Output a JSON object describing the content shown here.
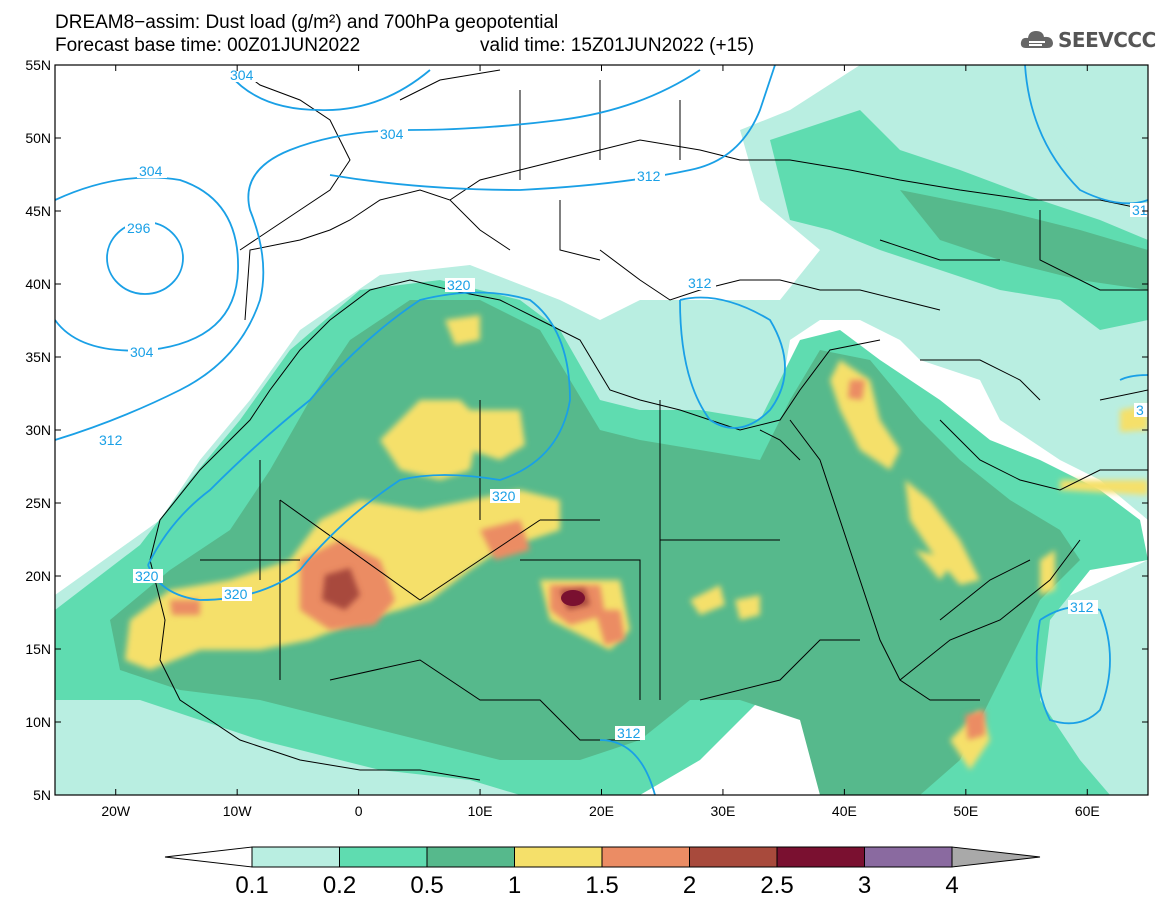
{
  "title": {
    "line1": "DREAM8−assim: Dust load (g/m²) and 700hPa geopotential",
    "line2_left": "Forecast base time: 00Z01JUN2022",
    "line2_right": "valid time: 15Z01JUN2022 (+15)"
  },
  "logo": {
    "text": "SEEVCCC",
    "icon": "cloud-icon"
  },
  "map": {
    "lon_range": [
      -25,
      65
    ],
    "lat_range": [
      5,
      55
    ],
    "lon_ticks": [
      "20W",
      "10W",
      "0",
      "10E",
      "20E",
      "30E",
      "40E",
      "50E",
      "60E"
    ],
    "lat_ticks": [
      "55N",
      "50N",
      "45N",
      "40N",
      "35N",
      "30N",
      "25N",
      "20N",
      "15N",
      "10N",
      "5N"
    ],
    "contour_labels": [
      "304",
      "304",
      "304",
      "296",
      "304",
      "312",
      "312",
      "312",
      "320",
      "320",
      "320",
      "320",
      "312",
      "312",
      "312",
      "31",
      "3"
    ]
  },
  "colorbar": {
    "labels": [
      "0.1",
      "0.2",
      "0.5",
      "1",
      "1.5",
      "2",
      "2.5",
      "3",
      "4"
    ],
    "colors": [
      "#b9eee1",
      "#5fdcb0",
      "#56b98c",
      "#f5e06a",
      "#eb8c64",
      "#a84a3c",
      "#7a1030",
      "#8a6aa0",
      "#a9a9a9"
    ]
  },
  "palette": {
    "land": "#ffffff",
    "contour": "#1aa0e6"
  }
}
